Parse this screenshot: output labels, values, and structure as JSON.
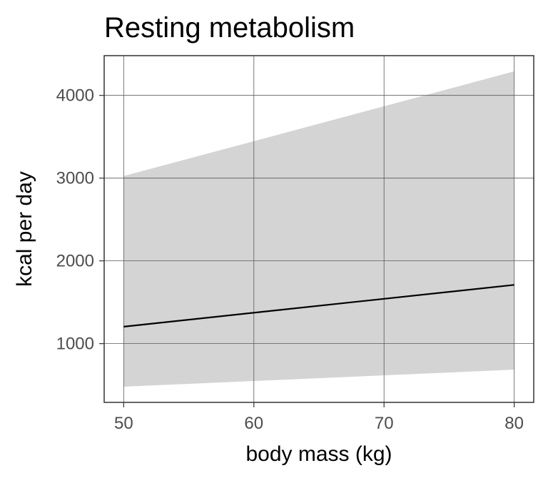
{
  "chart_data": {
    "type": "line",
    "title": "Resting metabolism",
    "xlabel": "body mass (kg)",
    "ylabel": "kcal per day",
    "xlim": [
      48.5,
      81.5
    ],
    "ylim": [
      290,
      4480
    ],
    "x_ticks": [
      50,
      60,
      70,
      80
    ],
    "y_ticks": [
      1000,
      2000,
      3000,
      4000
    ],
    "grid": true,
    "series": [
      {
        "x": [
          50,
          80
        ],
        "y": [
          1205,
          1710
        ],
        "band_lower": [
          480,
          685
        ],
        "band_upper": [
          3025,
          4290
        ]
      }
    ],
    "colors": {
      "line": "#000000",
      "band": "#d4d4d4",
      "grid": "#5a5a5a",
      "border": "#333333"
    }
  }
}
